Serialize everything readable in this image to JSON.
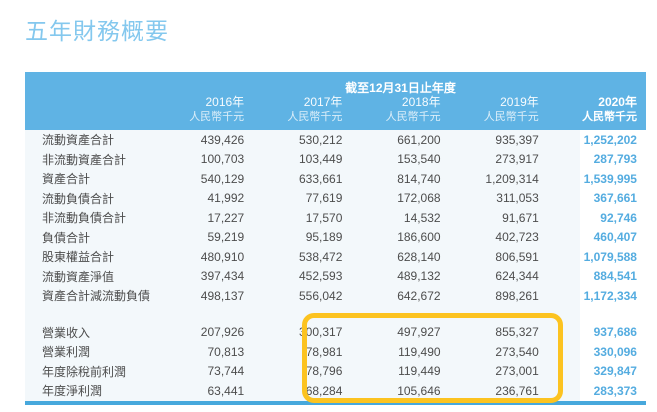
{
  "title": "五年財務概要",
  "table": {
    "period_header": "截至12月31日止年度",
    "columns": [
      {
        "year": "2016年",
        "unit": "人民幣千元"
      },
      {
        "year": "2017年",
        "unit": "人民幣千元"
      },
      {
        "year": "2018年",
        "unit": "人民幣千元"
      },
      {
        "year": "2019年",
        "unit": "人民幣千元"
      },
      {
        "year": "2020年",
        "unit": "人民幣千元"
      }
    ],
    "rows": [
      {
        "label": "流動資產合計",
        "values": [
          "439,426",
          "530,212",
          "661,200",
          "935,397",
          "1,252,202"
        ]
      },
      {
        "label": "非流動資產合計",
        "values": [
          "100,703",
          "103,449",
          "153,540",
          "273,917",
          "287,793"
        ]
      },
      {
        "label": "資產合計",
        "values": [
          "540,129",
          "633,661",
          "814,740",
          "1,209,314",
          "1,539,995"
        ]
      },
      {
        "label": "流動負債合計",
        "values": [
          "41,992",
          "77,619",
          "172,068",
          "311,053",
          "367,661"
        ]
      },
      {
        "label": "非流動負債合計",
        "values": [
          "17,227",
          "17,570",
          "14,532",
          "91,671",
          "92,746"
        ]
      },
      {
        "label": "負債合計",
        "values": [
          "59,219",
          "95,189",
          "186,600",
          "402,723",
          "460,407"
        ]
      },
      {
        "label": "股東權益合計",
        "values": [
          "480,910",
          "538,472",
          "628,140",
          "806,591",
          "1,079,588"
        ]
      },
      {
        "label": "流動資產淨值",
        "values": [
          "397,434",
          "452,593",
          "489,132",
          "624,344",
          "884,541"
        ]
      },
      {
        "label": "資產合計減流動負債",
        "values": [
          "498,137",
          "556,042",
          "642,672",
          "898,261",
          "1,172,334"
        ]
      },
      {
        "label": "營業收入",
        "values": [
          "207,926",
          "300,317",
          "497,927",
          "855,327",
          "937,686"
        ]
      },
      {
        "label": "營業利潤",
        "values": [
          "70,813",
          "78,981",
          "119,490",
          "273,540",
          "330,096"
        ]
      },
      {
        "label": "年度除稅前利潤",
        "values": [
          "73,744",
          "78,796",
          "119,449",
          "273,001",
          "329,847"
        ]
      },
      {
        "label": "年度淨利潤",
        "values": [
          "63,441",
          "68,284",
          "105,646",
          "236,761",
          "283,373"
        ]
      }
    ]
  },
  "colors": {
    "title": "#84c8ee",
    "header_bg": "#5fb3e4",
    "body_bg": "#f3f8fb",
    "accent_2020": "#54ace0",
    "highlight_border": "#fcc320",
    "bottom_border": "#47a8dc"
  }
}
